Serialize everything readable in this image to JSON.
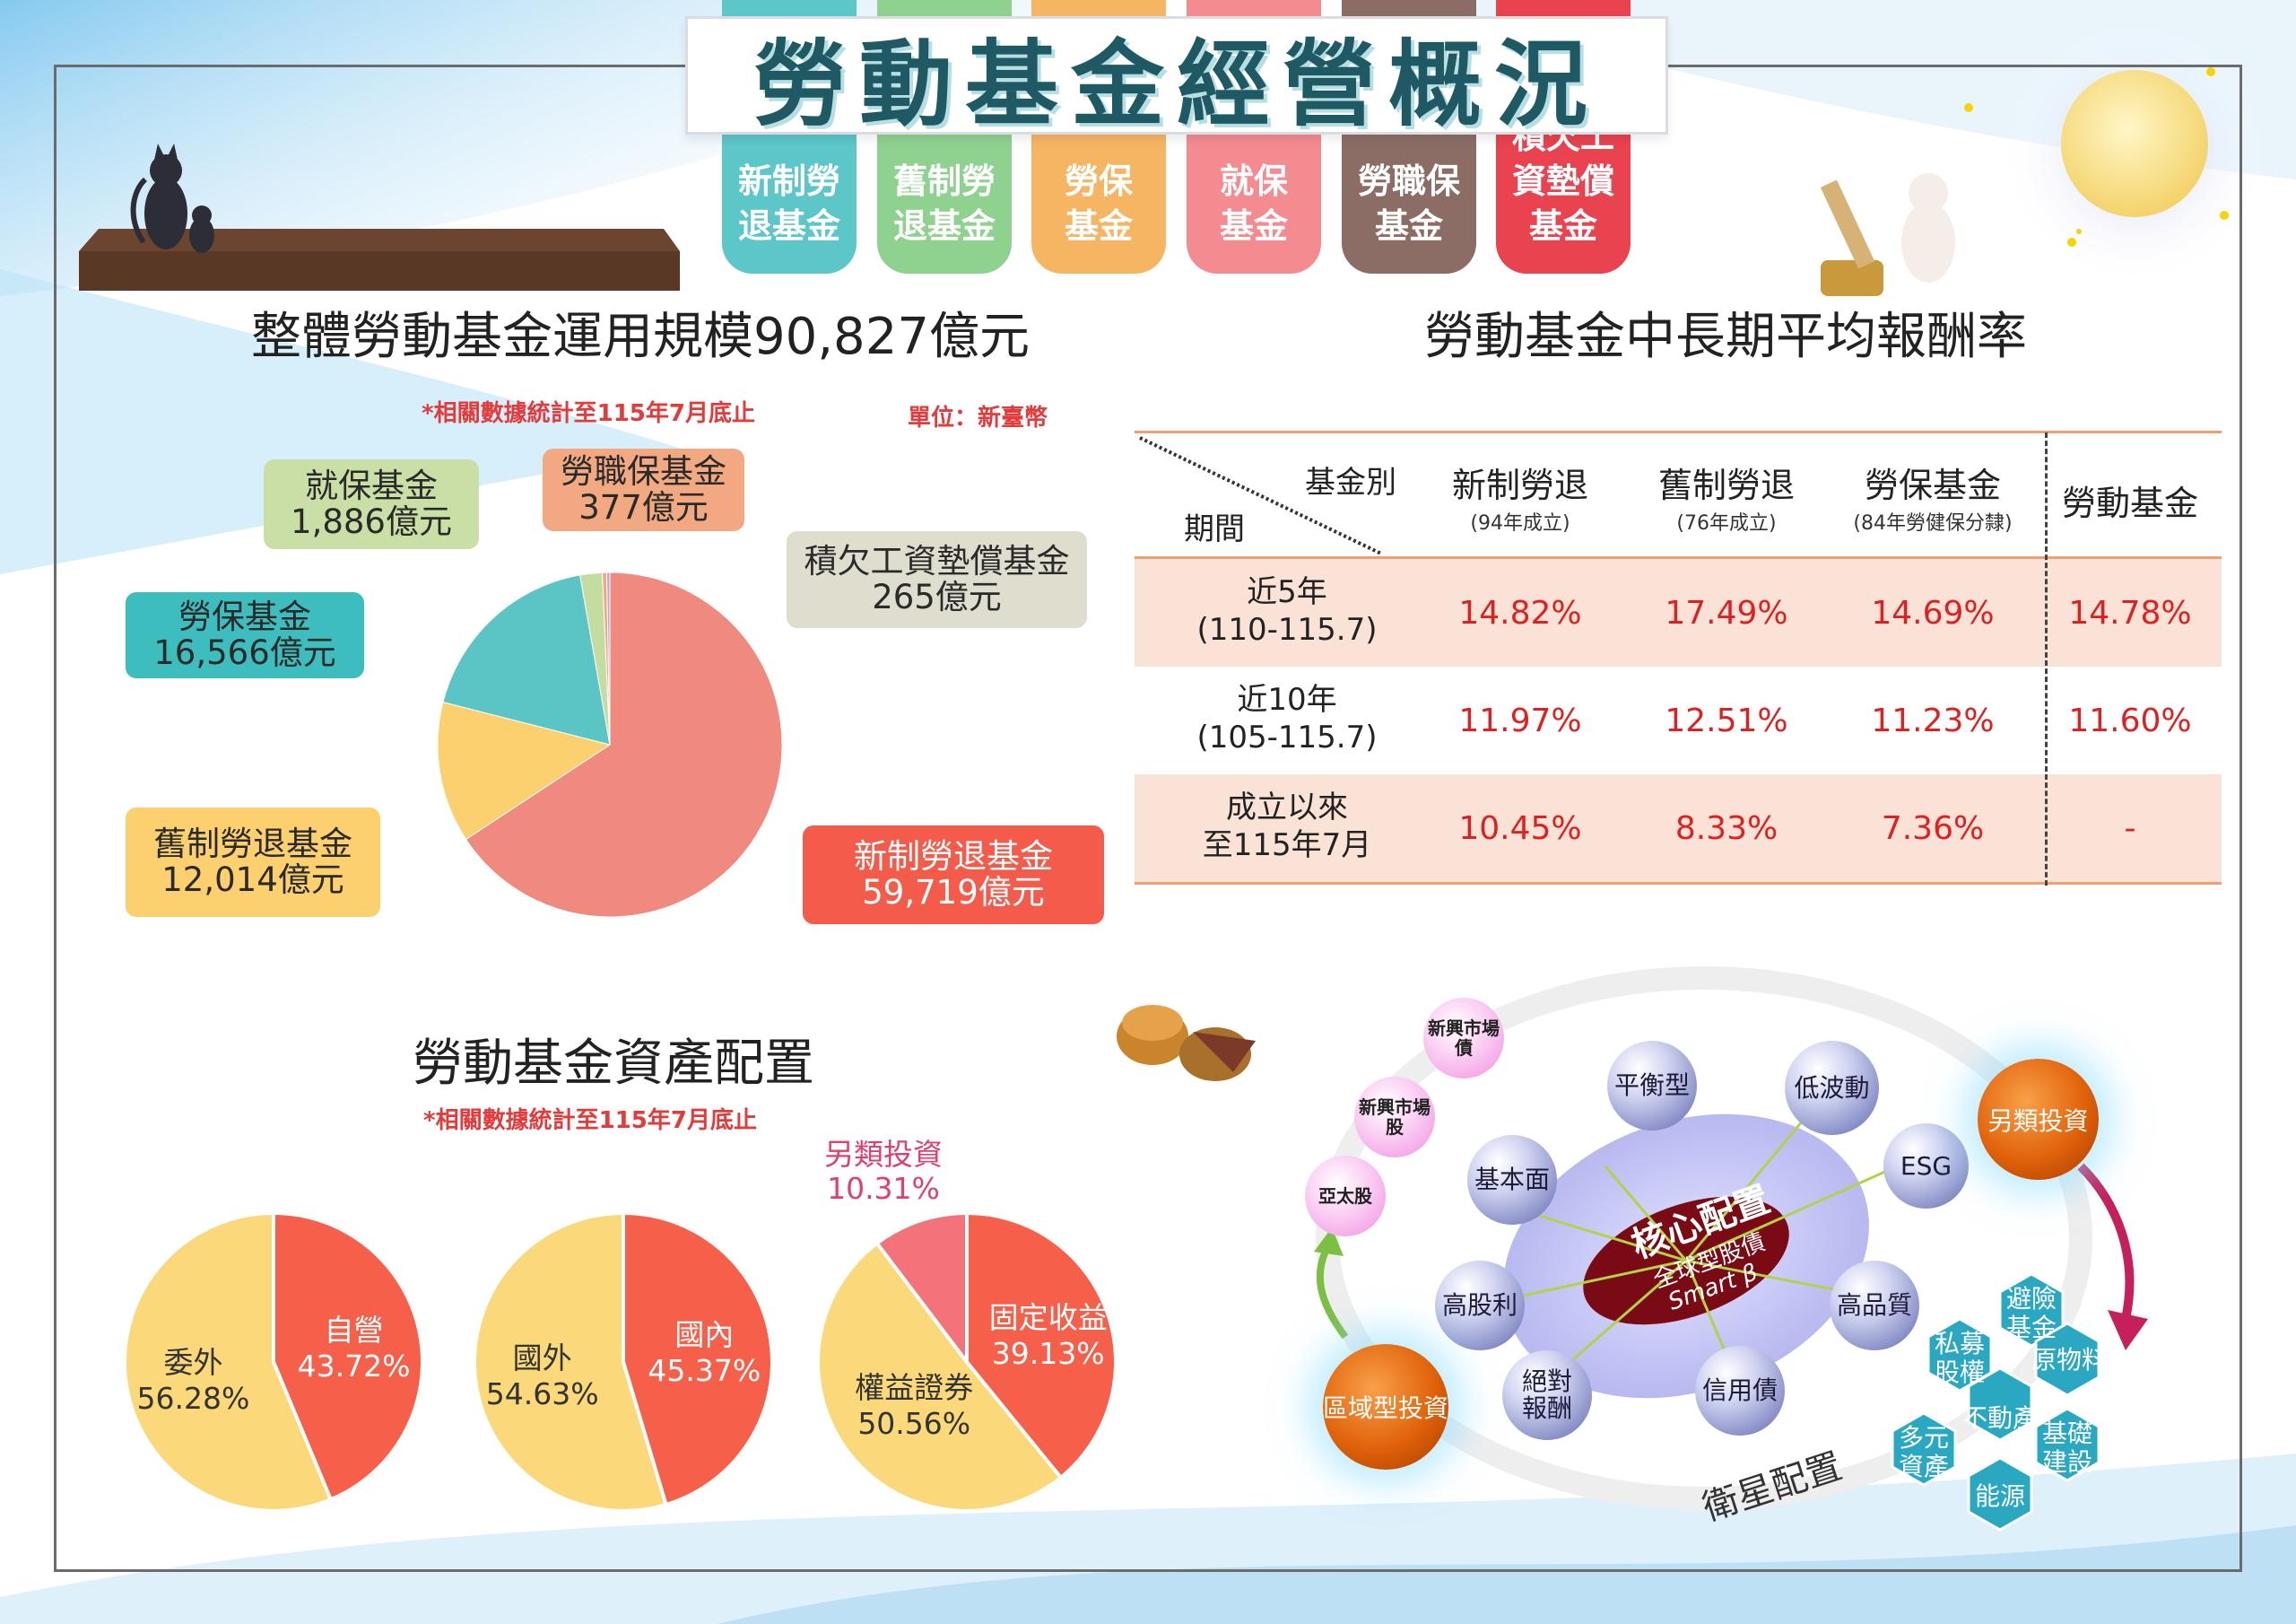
{
  "title": "勞動基金經營概況",
  "tags": [
    {
      "label": "新制勞\n退基金",
      "color": "#5cc6c9"
    },
    {
      "label": "舊制勞\n退基金",
      "color": "#8fd18f"
    },
    {
      "label": "勞保\n基金",
      "color": "#f6b563"
    },
    {
      "label": "就保\n基金",
      "color": "#f48b91"
    },
    {
      "label": "勞職保\n基金",
      "color": "#8c6d66"
    },
    {
      "label": "積欠工\n資墊償\n基金",
      "color": "#e8434f"
    }
  ],
  "scale_section": {
    "title": "整體勞動基金運用規模90,827億元",
    "note": "*相關數據統計至115年7月底止",
    "unit": "單位：新臺幣"
  },
  "return_section": {
    "title": "勞動基金中長期平均報酬率",
    "header_fund": "基金別",
    "header_period": "期間",
    "columns": [
      {
        "name": "新制勞退",
        "sub": "(94年成立)"
      },
      {
        "name": "舊制勞退",
        "sub": "(76年成立)"
      },
      {
        "name": "勞保基金",
        "sub": "(84年勞健保分隸)"
      },
      {
        "name": "勞動基金",
        "sub": ""
      }
    ],
    "rows": [
      {
        "period1": "近5年",
        "period2": "(110-115.7)",
        "values": [
          "14.82%",
          "17.49%",
          "14.69%",
          "14.78%"
        ]
      },
      {
        "period1": "近10年",
        "period2": "(105-115.7)",
        "values": [
          "11.97%",
          "12.51%",
          "11.23%",
          "11.60%"
        ]
      },
      {
        "period1": "成立以來",
        "period2": "至115年7月",
        "values": [
          "10.45%",
          "8.33%",
          "7.36%",
          "-"
        ]
      }
    ]
  },
  "asset_section": {
    "title": "勞動基金資產配置",
    "note": "*相關數據統計至115年7月底止"
  },
  "strategy": {
    "core_title": "核心配置",
    "core_sub": "全球型股債",
    "core_sub2": "Smart β",
    "satellite_label": "衛星配置",
    "alt_label": "另類投資",
    "region_label": "區域型投資",
    "balls": [
      "平衡型",
      "低波動",
      "基本面",
      "ESG",
      "高股利",
      "高品質",
      "絕對\n報酬",
      "信用債"
    ],
    "pink": [
      "新興市場\n債",
      "新興市場\n股",
      "亞太股"
    ],
    "hexes": [
      "避險\n基金",
      "私募\n股權",
      "原物料",
      "不動產",
      "多元\n資產",
      "基礎\n建設",
      "能源"
    ]
  },
  "chart_data": [
    {
      "type": "pie",
      "title": "整體勞動基金運用規模90,827億元",
      "unit": "億元",
      "slices": [
        {
          "name": "新制勞退基金",
          "value": 59719,
          "display": "59,719億元",
          "color": "#f08a7e"
        },
        {
          "name": "舊制勞退基金",
          "value": 12014,
          "display": "12,014億元",
          "color": "#fcd06f"
        },
        {
          "name": "勞保基金",
          "value": 16566,
          "display": "16,566億元",
          "color": "#5bc4c4"
        },
        {
          "name": "就保基金",
          "value": 1886,
          "display": "1,886億元",
          "color": "#c5dca0"
        },
        {
          "name": "勞職保基金",
          "value": 377,
          "display": "377億元",
          "color": "#f2a981"
        },
        {
          "name": "積欠工資墊償基金",
          "value": 265,
          "display": "265億元",
          "color": "#b8a7d8"
        }
      ]
    },
    {
      "type": "pie",
      "slices": [
        {
          "name": "自營",
          "value": 43.72,
          "display": "43.72%",
          "color": "#f6604a"
        },
        {
          "name": "委外",
          "value": 56.28,
          "display": "56.28%",
          "color": "#fbd97a"
        }
      ]
    },
    {
      "type": "pie",
      "slices": [
        {
          "name": "國內",
          "value": 45.37,
          "display": "45.37%",
          "color": "#f6604a"
        },
        {
          "name": "國外",
          "value": 54.63,
          "display": "54.63%",
          "color": "#fbd97a"
        }
      ]
    },
    {
      "type": "pie",
      "slices": [
        {
          "name": "固定收益",
          "value": 39.13,
          "display": "39.13%",
          "color": "#f6604a"
        },
        {
          "name": "權益證券",
          "value": 50.56,
          "display": "50.56%",
          "color": "#fbd97a"
        },
        {
          "name": "另類投資",
          "value": 10.31,
          "display": "10.31%",
          "color": "#f4737b"
        }
      ]
    }
  ]
}
